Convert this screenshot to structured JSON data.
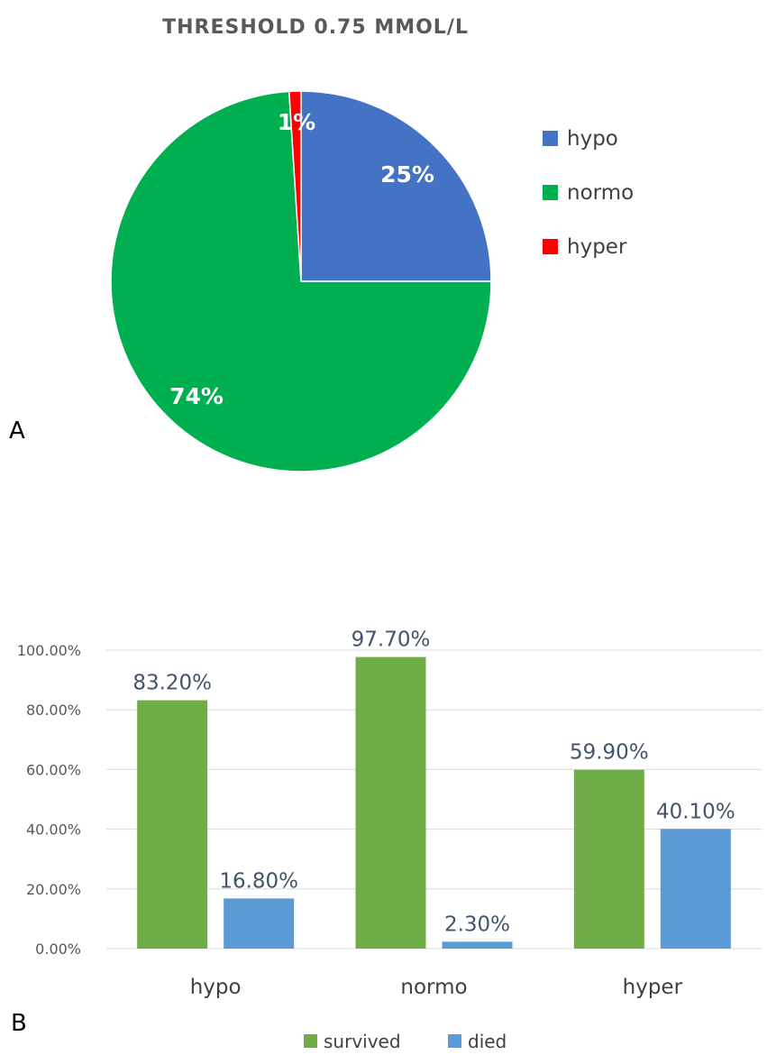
{
  "chart_data": [
    {
      "type": "pie",
      "title": "THRESHOLD 0.75 MMOL/L",
      "panel_label": "A",
      "slices": [
        {
          "label": "hypo",
          "value": 25,
          "display": "25%",
          "color": "#4472c4"
        },
        {
          "label": "normo",
          "value": 74,
          "display": "74%",
          "color": "#00b050"
        },
        {
          "label": "hyper",
          "value": 1,
          "display": "1%",
          "color": "#ff0000"
        }
      ],
      "legend": {
        "position": "right",
        "entries": [
          "hypo",
          "normo",
          "hyper"
        ]
      }
    },
    {
      "type": "bar",
      "panel_label": "B",
      "categories": [
        "hypo",
        "normo",
        "hyper"
      ],
      "series": [
        {
          "name": "survived",
          "values": [
            83.2,
            97.7,
            59.9
          ],
          "labels": [
            "83.20%",
            "97.70%",
            "59.90%"
          ],
          "color": "#70ad47"
        },
        {
          "name": "died",
          "values": [
            16.8,
            2.3,
            40.1
          ],
          "labels": [
            "16.80%",
            "2.30%",
            "40.10%"
          ],
          "color": "#5b9bd5"
        }
      ],
      "ylim": [
        0,
        100
      ],
      "yticks": [
        0,
        20,
        40,
        60,
        80,
        100
      ],
      "ytick_labels": [
        "0.00%",
        "20.00%",
        "40.00%",
        "60.00%",
        "80.00%",
        "100.00%"
      ],
      "grid": true,
      "legend": {
        "position": "bottom",
        "entries": [
          "survived",
          "died"
        ]
      }
    }
  ]
}
